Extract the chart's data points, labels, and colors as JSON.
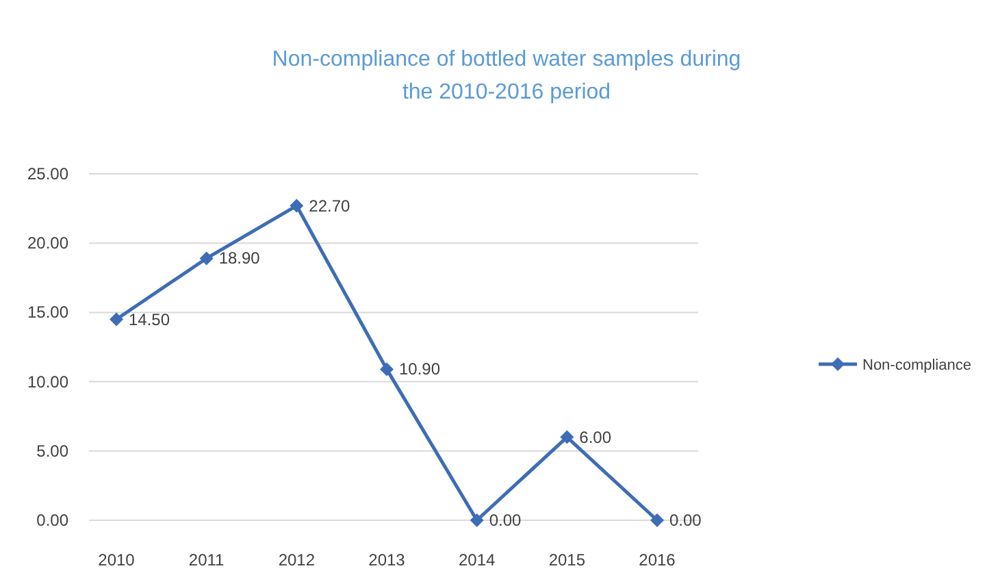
{
  "chart_data": {
    "type": "line",
    "title": "Non-compliance of bottled water samples during the 2010-2016 period",
    "categories": [
      "2010",
      "2011",
      "2012",
      "2013",
      "2014",
      "2015",
      "2016"
    ],
    "series": [
      {
        "name": "Non-compliance",
        "color": "#3d6db5",
        "values": [
          14.5,
          18.9,
          22.7,
          10.9,
          0,
          6,
          0
        ],
        "value_labels": [
          "14.50",
          "18.90",
          "22.70",
          "10.90",
          "0.00",
          "6.00",
          "0.00"
        ]
      }
    ],
    "ylim": [
      0,
      25
    ],
    "yticks": [
      {
        "value": 0,
        "label": "0.00"
      },
      {
        "value": 5,
        "label": "5.00"
      },
      {
        "value": 10,
        "label": "10.00"
      },
      {
        "value": 15,
        "label": "15.00"
      },
      {
        "value": 20,
        "label": "20.00"
      },
      {
        "value": 25,
        "label": "25.00"
      }
    ],
    "grid": "y",
    "legend": "right",
    "marker": "diamond",
    "line_style": "solid"
  }
}
